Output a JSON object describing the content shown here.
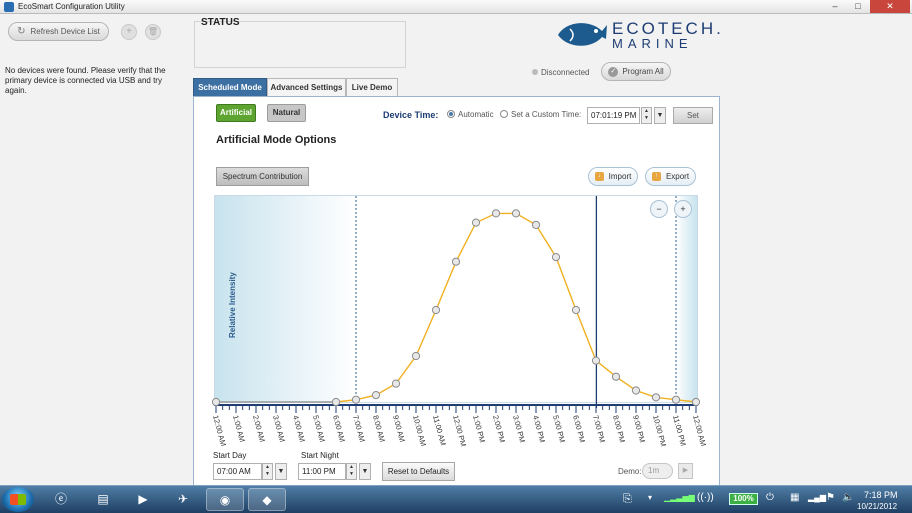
{
  "window": {
    "title": "EcoSmart Configuration Utility",
    "minimize": "–",
    "maximize": "□",
    "close": "✕"
  },
  "left": {
    "refresh_label": "Refresh Device List",
    "add_glyph": "+",
    "delete_glyph": "🗑",
    "message": "No devices were found. Please verify that the primary device is connected via USB and try again."
  },
  "status": {
    "label": "STATUS"
  },
  "logo": {
    "line1": "ECOTECH.",
    "line2": "MARINE"
  },
  "connection": {
    "text": "Disconnected"
  },
  "program_all_label": "Program All",
  "tabs": [
    {
      "label": "Scheduled Mode",
      "active": true
    },
    {
      "label": "Advanced Settings",
      "active": false
    },
    {
      "label": "Live Demo",
      "active": false
    }
  ],
  "modes": {
    "artificial": "Artificial",
    "natural": "Natural"
  },
  "device_time": {
    "label": "Device Time:",
    "automatic": "Automatic",
    "custom": "Set a Custom Time:",
    "value": "07:01:19 PM",
    "set_label": "Set"
  },
  "options_title": "Artificial Mode Options",
  "spectrum_label": "Spectrum Contribution",
  "import_label": "Import",
  "export_label": "Export",
  "chart_data": {
    "type": "line",
    "ylabel": "Relative Intensity",
    "x": [
      "12:00 AM",
      "1:00 AM",
      "2:00 AM",
      "3:00 AM",
      "4:00 AM",
      "5:00 AM",
      "6:00 AM",
      "7:00 AM",
      "8:00 AM",
      "9:00 AM",
      "10:00 AM",
      "11:00 AM",
      "12:00 PM",
      "1:00 PM",
      "2:00 PM",
      "3:00 PM",
      "4:00 PM",
      "5:00 PM",
      "6:00 PM",
      "7:00 PM",
      "8:00 PM",
      "9:00 PM",
      "10:00 PM",
      "11:00 PM",
      "12:00 AM"
    ],
    "points": [
      {
        "x": 0,
        "y": 0
      },
      {
        "x": 6,
        "y": 0
      },
      {
        "x": 7,
        "y": 0.01
      },
      {
        "x": 8,
        "y": 0.03
      },
      {
        "x": 9,
        "y": 0.08
      },
      {
        "x": 10,
        "y": 0.2
      },
      {
        "x": 11,
        "y": 0.4
      },
      {
        "x": 12,
        "y": 0.61
      },
      {
        "x": 13,
        "y": 0.78
      },
      {
        "x": 14,
        "y": 0.82
      },
      {
        "x": 15,
        "y": 0.82
      },
      {
        "x": 16,
        "y": 0.77
      },
      {
        "x": 17,
        "y": 0.63
      },
      {
        "x": 18,
        "y": 0.4
      },
      {
        "x": 19,
        "y": 0.18
      },
      {
        "x": 20,
        "y": 0.11
      },
      {
        "x": 21,
        "y": 0.05
      },
      {
        "x": 22,
        "y": 0.02
      },
      {
        "x": 23,
        "y": 0.01
      },
      {
        "x": 24,
        "y": 0
      }
    ],
    "start_day_hour": 7,
    "start_night_hour": 23,
    "current_time_hour": 19.02,
    "line_color": "#f0b020",
    "night_shade_color": "#c8e3ee"
  },
  "start_day": {
    "label": "Start Day",
    "value": "07:00 AM"
  },
  "start_night": {
    "label": "Start Night",
    "value": "11:00 PM"
  },
  "reset_label": "Reset to Defaults",
  "demo": {
    "label": "Demo:",
    "value": "1m"
  },
  "taskbar": {
    "battery": "100%",
    "time": "7:18 PM",
    "date": "10/21/2012"
  }
}
